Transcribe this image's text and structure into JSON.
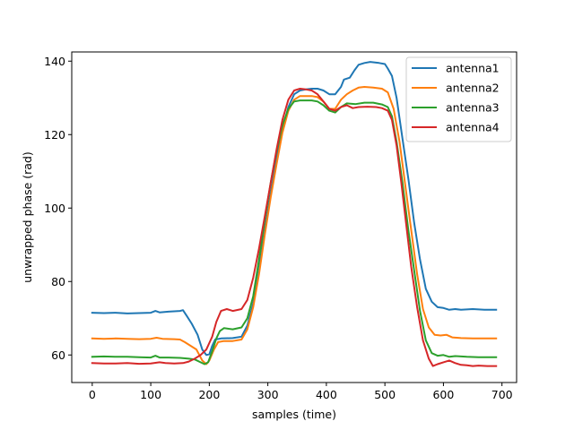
{
  "chart_data": {
    "type": "line",
    "title": "",
    "xlabel": "samples (time)",
    "ylabel": "unwrapped phase (rad)",
    "xlim": [
      -35,
      725
    ],
    "ylim": [
      52.5,
      142.5
    ],
    "xticks": [
      0,
      100,
      200,
      300,
      400,
      500,
      600,
      700
    ],
    "yticks": [
      60,
      80,
      100,
      120,
      140
    ],
    "grid": false,
    "legend_position": "upper right",
    "series": [
      {
        "name": "antenna1",
        "color": "#1f77b4",
        "points": [
          [
            0,
            71.5
          ],
          [
            20,
            71.4
          ],
          [
            40,
            71.5
          ],
          [
            60,
            71.3
          ],
          [
            80,
            71.4
          ],
          [
            100,
            71.5
          ],
          [
            108,
            72.0
          ],
          [
            115,
            71.6
          ],
          [
            130,
            71.8
          ],
          [
            150,
            72.0
          ],
          [
            155,
            72.2
          ],
          [
            162,
            70.5
          ],
          [
            170,
            68.5
          ],
          [
            180,
            65.5
          ],
          [
            188,
            61.5
          ],
          [
            195,
            60.0
          ],
          [
            200,
            60.2
          ],
          [
            205,
            62.5
          ],
          [
            210,
            64.2
          ],
          [
            220,
            64.5
          ],
          [
            240,
            64.6
          ],
          [
            255,
            65.0
          ],
          [
            265,
            68.0
          ],
          [
            275,
            74.0
          ],
          [
            285,
            83.0
          ],
          [
            295,
            94.0
          ],
          [
            305,
            104.0
          ],
          [
            315,
            113.5
          ],
          [
            325,
            121.5
          ],
          [
            335,
            127.5
          ],
          [
            345,
            131.0
          ],
          [
            355,
            132.0
          ],
          [
            365,
            132.3
          ],
          [
            375,
            132.5
          ],
          [
            385,
            132.5
          ],
          [
            395,
            132.0
          ],
          [
            405,
            131.0
          ],
          [
            415,
            131.0
          ],
          [
            425,
            133.0
          ],
          [
            430,
            135.0
          ],
          [
            440,
            135.5
          ],
          [
            448,
            137.5
          ],
          [
            455,
            139.0
          ],
          [
            465,
            139.5
          ],
          [
            475,
            139.8
          ],
          [
            490,
            139.5
          ],
          [
            500,
            139.2
          ],
          [
            505,
            138.0
          ],
          [
            512,
            136.0
          ],
          [
            520,
            130.0
          ],
          [
            530,
            119.0
          ],
          [
            540,
            108.0
          ],
          [
            550,
            96.0
          ],
          [
            560,
            86.0
          ],
          [
            570,
            78.0
          ],
          [
            580,
            74.5
          ],
          [
            590,
            73.0
          ],
          [
            600,
            72.8
          ],
          [
            610,
            72.3
          ],
          [
            620,
            72.5
          ],
          [
            630,
            72.3
          ],
          [
            650,
            72.5
          ],
          [
            670,
            72.3
          ],
          [
            690,
            72.3
          ]
        ]
      },
      {
        "name": "antenna2",
        "color": "#ff7f0e",
        "points": [
          [
            0,
            64.5
          ],
          [
            20,
            64.4
          ],
          [
            40,
            64.5
          ],
          [
            60,
            64.4
          ],
          [
            80,
            64.3
          ],
          [
            100,
            64.4
          ],
          [
            110,
            64.7
          ],
          [
            120,
            64.4
          ],
          [
            140,
            64.3
          ],
          [
            150,
            64.2
          ],
          [
            158,
            63.5
          ],
          [
            168,
            62.5
          ],
          [
            178,
            61.5
          ],
          [
            188,
            58.5
          ],
          [
            195,
            57.5
          ],
          [
            200,
            58.5
          ],
          [
            208,
            61.5
          ],
          [
            215,
            63.5
          ],
          [
            225,
            63.8
          ],
          [
            240,
            63.8
          ],
          [
            255,
            64.2
          ],
          [
            265,
            67.0
          ],
          [
            275,
            73.0
          ],
          [
            285,
            82.0
          ],
          [
            295,
            93.0
          ],
          [
            305,
            103.0
          ],
          [
            315,
            112.0
          ],
          [
            325,
            120.5
          ],
          [
            335,
            126.5
          ],
          [
            345,
            129.5
          ],
          [
            355,
            130.5
          ],
          [
            365,
            130.5
          ],
          [
            375,
            130.5
          ],
          [
            385,
            130.2
          ],
          [
            395,
            129.0
          ],
          [
            405,
            127.0
          ],
          [
            415,
            127.0
          ],
          [
            425,
            129.5
          ],
          [
            435,
            131.0
          ],
          [
            445,
            132.0
          ],
          [
            455,
            132.8
          ],
          [
            465,
            133.0
          ],
          [
            480,
            132.8
          ],
          [
            495,
            132.5
          ],
          [
            505,
            131.5
          ],
          [
            515,
            127.0
          ],
          [
            525,
            118.0
          ],
          [
            535,
            106.0
          ],
          [
            545,
            94.0
          ],
          [
            555,
            82.0
          ],
          [
            565,
            72.5
          ],
          [
            575,
            67.5
          ],
          [
            585,
            65.5
          ],
          [
            595,
            65.3
          ],
          [
            605,
            65.5
          ],
          [
            615,
            64.8
          ],
          [
            630,
            64.6
          ],
          [
            650,
            64.5
          ],
          [
            670,
            64.5
          ],
          [
            690,
            64.5
          ]
        ]
      },
      {
        "name": "antenna3",
        "color": "#2ca02c",
        "points": [
          [
            0,
            59.5
          ],
          [
            20,
            59.6
          ],
          [
            40,
            59.5
          ],
          [
            60,
            59.5
          ],
          [
            80,
            59.4
          ],
          [
            100,
            59.3
          ],
          [
            108,
            59.8
          ],
          [
            115,
            59.3
          ],
          [
            130,
            59.3
          ],
          [
            150,
            59.2
          ],
          [
            165,
            59.0
          ],
          [
            175,
            58.8
          ],
          [
            185,
            58.0
          ],
          [
            192,
            57.5
          ],
          [
            198,
            58.0
          ],
          [
            205,
            61.0
          ],
          [
            212,
            64.5
          ],
          [
            218,
            66.5
          ],
          [
            225,
            67.3
          ],
          [
            240,
            67.0
          ],
          [
            255,
            67.5
          ],
          [
            265,
            70.0
          ],
          [
            275,
            76.0
          ],
          [
            285,
            86.0
          ],
          [
            295,
            97.0
          ],
          [
            305,
            107.0
          ],
          [
            315,
            115.5
          ],
          [
            325,
            122.5
          ],
          [
            335,
            127.0
          ],
          [
            345,
            129.0
          ],
          [
            355,
            129.3
          ],
          [
            365,
            129.3
          ],
          [
            375,
            129.3
          ],
          [
            385,
            129.0
          ],
          [
            395,
            128.0
          ],
          [
            405,
            126.5
          ],
          [
            415,
            126.0
          ],
          [
            425,
            127.5
          ],
          [
            435,
            128.5
          ],
          [
            450,
            128.3
          ],
          [
            465,
            128.7
          ],
          [
            480,
            128.7
          ],
          [
            495,
            128.2
          ],
          [
            505,
            127.5
          ],
          [
            512,
            125.0
          ],
          [
            520,
            118.0
          ],
          [
            530,
            107.0
          ],
          [
            540,
            94.0
          ],
          [
            550,
            83.0
          ],
          [
            560,
            72.0
          ],
          [
            570,
            64.0
          ],
          [
            580,
            60.5
          ],
          [
            590,
            59.8
          ],
          [
            600,
            60.0
          ],
          [
            610,
            59.5
          ],
          [
            620,
            59.7
          ],
          [
            640,
            59.5
          ],
          [
            660,
            59.4
          ],
          [
            690,
            59.4
          ]
        ]
      },
      {
        "name": "antenna4",
        "color": "#d62728",
        "points": [
          [
            0,
            57.8
          ],
          [
            20,
            57.7
          ],
          [
            40,
            57.7
          ],
          [
            60,
            57.8
          ],
          [
            80,
            57.6
          ],
          [
            100,
            57.7
          ],
          [
            115,
            58.0
          ],
          [
            125,
            57.8
          ],
          [
            140,
            57.7
          ],
          [
            155,
            57.8
          ],
          [
            165,
            58.2
          ],
          [
            175,
            59.0
          ],
          [
            185,
            60.0
          ],
          [
            195,
            61.5
          ],
          [
            205,
            65.0
          ],
          [
            212,
            69.0
          ],
          [
            220,
            72.0
          ],
          [
            230,
            72.5
          ],
          [
            240,
            72.0
          ],
          [
            255,
            72.5
          ],
          [
            265,
            75.0
          ],
          [
            275,
            81.0
          ],
          [
            285,
            89.0
          ],
          [
            295,
            98.0
          ],
          [
            305,
            107.0
          ],
          [
            315,
            116.0
          ],
          [
            325,
            124.0
          ],
          [
            335,
            129.5
          ],
          [
            345,
            132.0
          ],
          [
            355,
            132.5
          ],
          [
            365,
            132.3
          ],
          [
            375,
            132.0
          ],
          [
            385,
            131.0
          ],
          [
            395,
            129.0
          ],
          [
            405,
            127.0
          ],
          [
            415,
            126.5
          ],
          [
            425,
            127.5
          ],
          [
            435,
            128.0
          ],
          [
            445,
            127.2
          ],
          [
            455,
            127.5
          ],
          [
            470,
            127.6
          ],
          [
            485,
            127.5
          ],
          [
            495,
            127.2
          ],
          [
            505,
            126.5
          ],
          [
            512,
            124.0
          ],
          [
            520,
            117.0
          ],
          [
            528,
            107.0
          ],
          [
            536,
            96.0
          ],
          [
            545,
            84.0
          ],
          [
            555,
            73.0
          ],
          [
            565,
            64.0
          ],
          [
            575,
            59.0
          ],
          [
            582,
            57.0
          ],
          [
            590,
            57.5
          ],
          [
            600,
            58.0
          ],
          [
            610,
            58.5
          ],
          [
            620,
            57.8
          ],
          [
            630,
            57.3
          ],
          [
            640,
            57.2
          ],
          [
            650,
            57.0
          ],
          [
            660,
            57.1
          ],
          [
            675,
            57.0
          ],
          [
            690,
            57.0
          ]
        ]
      }
    ]
  }
}
